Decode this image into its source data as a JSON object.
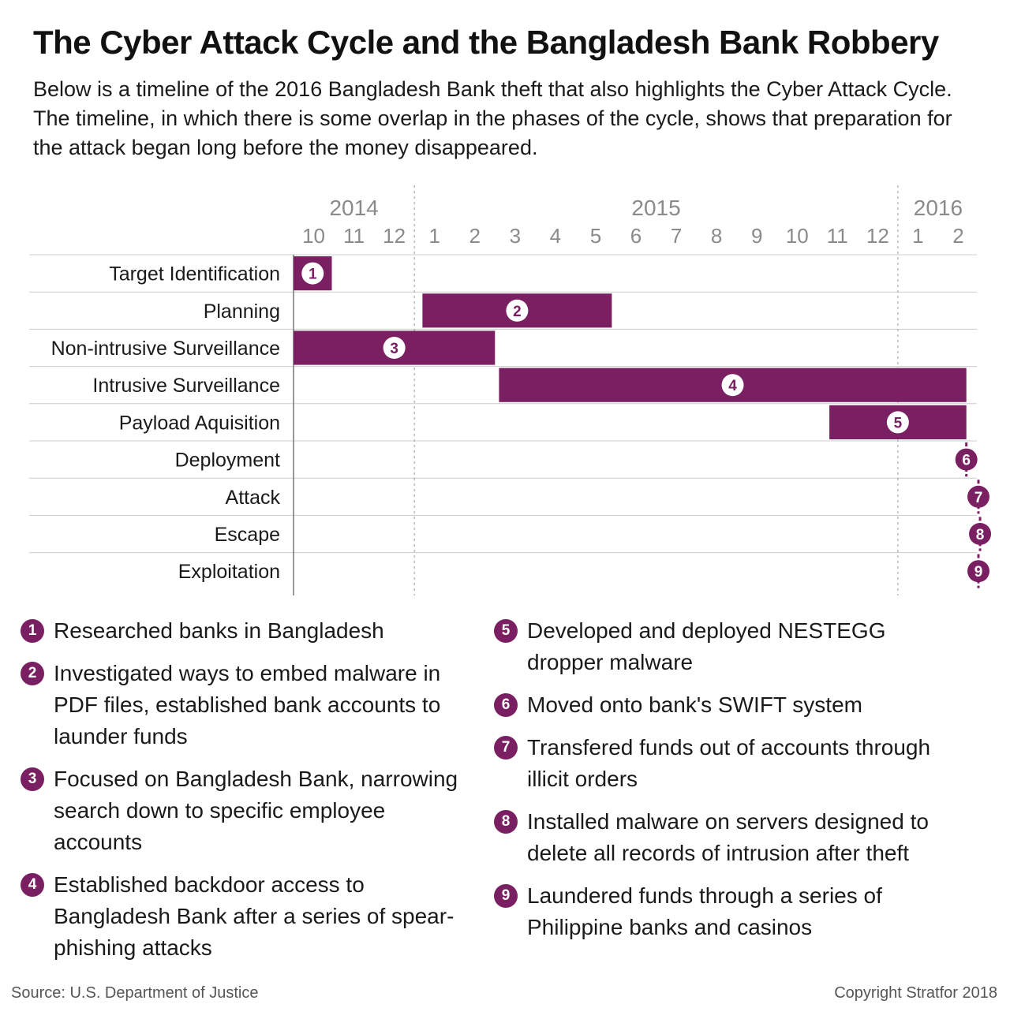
{
  "title": "The Cyber Attack Cycle and the Bangladesh Bank Robbery",
  "subtitle": "Below is a timeline of the 2016 Bangladesh Bank theft that also highlights the Cyber Attack Cycle. The timeline, in which there is some overlap in the phases of the cycle, shows that preparation for the attack began long before the money disappeared.",
  "colors": {
    "bar": "#7a2062",
    "grid": "#cccccc",
    "axis_text": "#8a8a8a"
  },
  "chart_data": {
    "type": "gantt",
    "years": [
      {
        "label": "2014",
        "start": 0,
        "end": 3
      },
      {
        "label": "2015",
        "start": 3,
        "end": 15
      },
      {
        "label": "2016",
        "start": 15,
        "end": 17
      }
    ],
    "months": [
      "10",
      "11",
      "12",
      "1",
      "2",
      "3",
      "4",
      "5",
      "6",
      "7",
      "8",
      "9",
      "10",
      "11",
      "12",
      "1",
      "2"
    ],
    "x_range_months": [
      0,
      17
    ],
    "x_note": "0 = start of October 2014",
    "tasks": [
      {
        "label": "Target Identification",
        "num": "1",
        "start": 0.0,
        "end": 0.95
      },
      {
        "label": "Planning",
        "num": "2",
        "start": 3.2,
        "end": 7.9
      },
      {
        "label": "Non-intrusive Surveillance",
        "num": "3",
        "start": 0.0,
        "end": 5.0
      },
      {
        "label": "Intrusive Surveillance",
        "num": "4",
        "start": 5.1,
        "end": 16.7
      },
      {
        "label": "Payload Aquisition",
        "num": "5",
        "start": 13.3,
        "end": 16.7
      },
      {
        "label": "Deployment",
        "num": "6",
        "date": 16.7
      },
      {
        "label": "Attack",
        "num": "7",
        "date": 17.0
      },
      {
        "label": "Escape",
        "num": "8",
        "date": 17.04
      },
      {
        "label": "Exploitation",
        "num": "9",
        "date": 17.0
      }
    ]
  },
  "legend": {
    "left": [
      {
        "num": "1",
        "text": "Researched banks in Bangladesh"
      },
      {
        "num": "2",
        "text": "Investigated ways to embed malware in PDF files, established bank accounts to launder funds"
      },
      {
        "num": "3",
        "text": "Focused on Bangladesh Bank, narrowing search down to specific employee accounts"
      },
      {
        "num": "4",
        "text": "Established backdoor access to Bangladesh Bank after a series of spear-phishing attacks"
      }
    ],
    "right": [
      {
        "num": "5",
        "text": "Developed and deployed NESTEGG dropper malware"
      },
      {
        "num": "6",
        "text": "Moved onto bank's SWIFT system"
      },
      {
        "num": "7",
        "text": "Transfered funds out of accounts through illicit orders"
      },
      {
        "num": "8",
        "text": "Installed malware on servers designed to delete all records of intrusion after theft"
      },
      {
        "num": "9",
        "text": "Laundered funds through a series of Philippine banks and casinos"
      }
    ]
  },
  "footer": {
    "source": "Source: U.S. Department of Justice",
    "copyright": "Copyright Stratfor 2018"
  }
}
